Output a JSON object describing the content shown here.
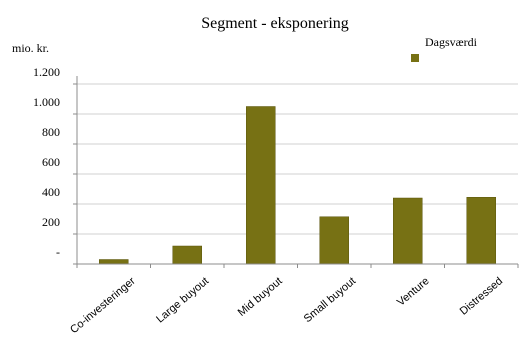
{
  "chart_data": {
    "type": "bar",
    "title": "Segment - eksponering",
    "ylabel": "mio. kr.",
    "xlabel": "",
    "categories": [
      "Co-investeringer",
      "Large buyout",
      "Mid buyout",
      "Small buyout",
      "Venture",
      "Distressed"
    ],
    "series": [
      {
        "name": "Dagsværdi",
        "values": [
          30,
          120,
          1050,
          315,
          440,
          445
        ]
      }
    ],
    "ylim": [
      0,
      1200
    ],
    "yticks": [
      {
        "value": 0,
        "label": "-"
      },
      {
        "value": 200,
        "label": "200"
      },
      {
        "value": 400,
        "label": "400"
      },
      {
        "value": 600,
        "label": "600"
      },
      {
        "value": 800,
        "label": "800"
      },
      {
        "value": 1000,
        "label": "1.000"
      },
      {
        "value": 1200,
        "label": "1.200"
      }
    ],
    "grid": true,
    "legend": "top-right",
    "colors": {
      "bar": "#777114",
      "bar_edge": "#5b560e",
      "axis": "#8c8c8c",
      "grid": "#d0d0d0"
    }
  }
}
